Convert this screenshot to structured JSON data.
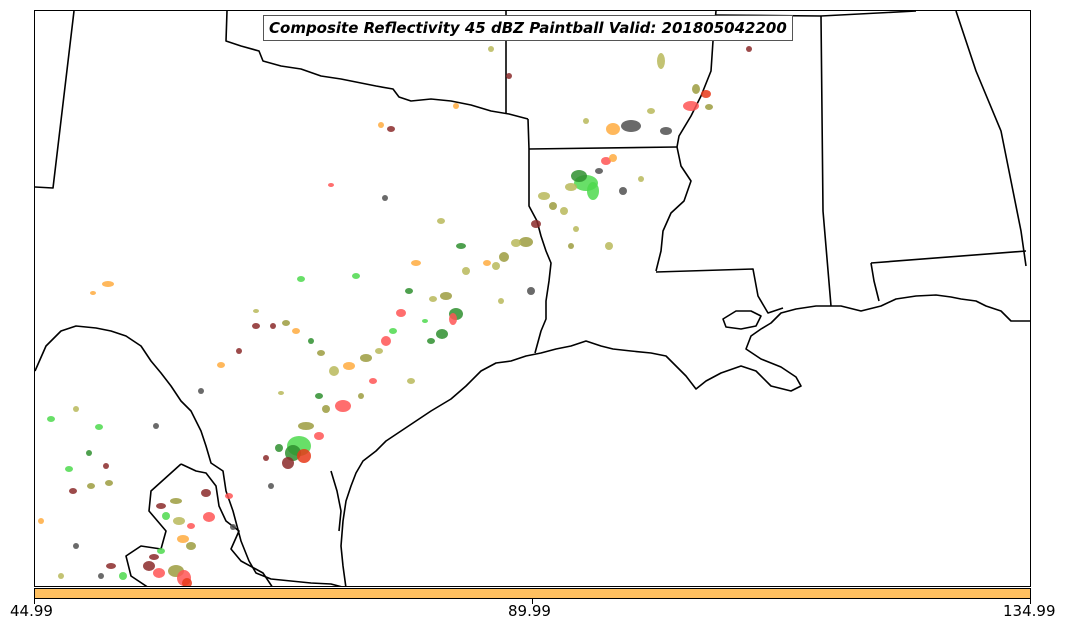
{
  "title": "Composite Reflectivity 45 dBZ Paintball Valid: 201805042200",
  "colors": {
    "boundary": "#000000",
    "colorbar_fill": "#ffc060",
    "members": [
      "#ff5555",
      "#2f8f2f",
      "#4ed94e",
      "#ffab40",
      "#9c9c40",
      "#8b2a2a",
      "#505050",
      "#b9b95a",
      "#e83a1a"
    ]
  },
  "colorbar": {
    "ticks": [
      "44.99",
      "89.99",
      "134.99"
    ]
  }
}
